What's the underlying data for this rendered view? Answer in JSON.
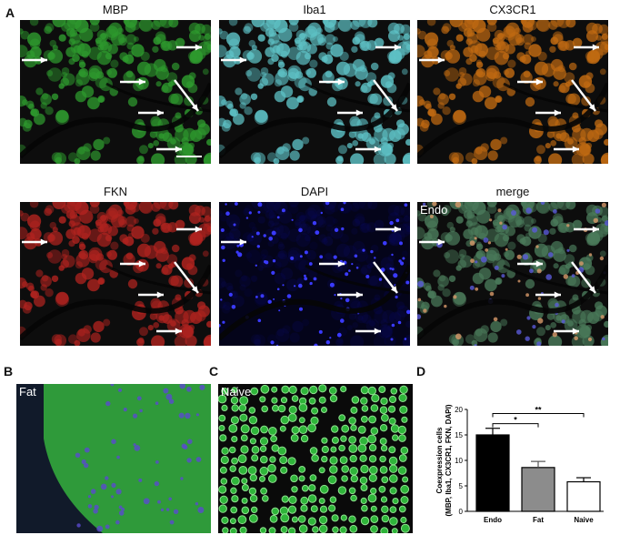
{
  "panels": {
    "a": "A",
    "b": "B",
    "c": "C",
    "d": "D"
  },
  "channels": [
    "MBP",
    "Iba1",
    "CX3CR1",
    "FKN",
    "DAPI",
    "merge"
  ],
  "insets": {
    "merge": "Endo",
    "fat": "Fat",
    "naive": "Naive"
  },
  "colors": {
    "mbp": "#2e9a2e",
    "iba1": "#5ec2c6",
    "cx3cr1": "#c06a12",
    "fkn": "#b0231f",
    "dapi": "#0a0a6a",
    "merge": "#4a7a5a",
    "bar_endo": "#000000",
    "bar_fat": "#8c8c8c",
    "bar_naive": "#ffffff"
  },
  "chart_data": {
    "type": "bar",
    "categories": [
      "Endo",
      "Fat",
      "Naive"
    ],
    "values": [
      15.0,
      8.6,
      5.8
    ],
    "errors": [
      1.3,
      1.2,
      0.8
    ],
    "ylabel": "Coexpression cells (MBP, Iba1, CX3CR1, FKN, DAPI)",
    "ylim": [
      0,
      20
    ],
    "yticks": [
      0,
      5,
      10,
      15,
      20
    ],
    "significance": [
      {
        "from": "Endo",
        "to": "Fat",
        "label": "*"
      },
      {
        "from": "Endo",
        "to": "Naive",
        "label": "**"
      }
    ]
  }
}
